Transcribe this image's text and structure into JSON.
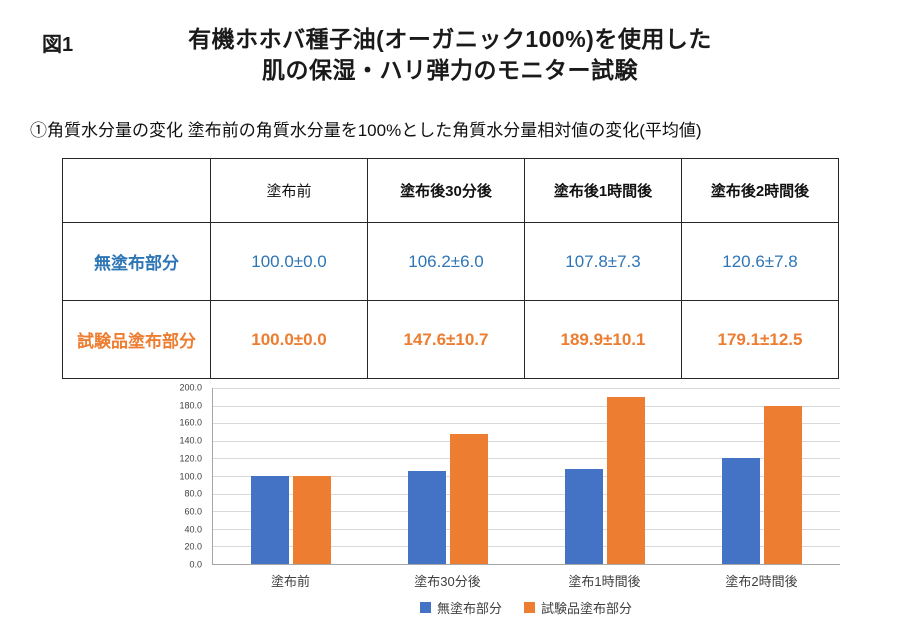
{
  "header": {
    "figure_label": "図1",
    "title_line1": "有機ホホバ種子油(オーガニック100%)を使用した",
    "title_line2": "肌の保湿・ハリ弾力のモニター試験",
    "subtitle": "①角質水分量の変化 塗布前の角質水分量を100%とした角質水分量相対値の変化(平均値)"
  },
  "table": {
    "headers": [
      "",
      "塗布前",
      "塗布後30分後",
      "塗布後1時間後",
      "塗布後2時間後"
    ],
    "rows": [
      {
        "label": "無塗布部分",
        "values": [
          "100.0±0.0",
          "106.2±6.0",
          "107.8±7.3",
          "120.6±7.8"
        ],
        "text_color": "#2E75B6"
      },
      {
        "label": "試験品塗布部分",
        "values": [
          "100.0±0.0",
          "147.6±10.7",
          "189.9±10.1",
          "179.1±12.5"
        ],
        "text_color": "#ED7D31"
      }
    ]
  },
  "chart_data": {
    "type": "bar",
    "categories": [
      "塗布前",
      "塗布30分後",
      "塗布1時間後",
      "塗布2時間後"
    ],
    "series": [
      {
        "name": "無塗布部分",
        "color": "#4472C4",
        "values": [
          100.0,
          106.2,
          107.8,
          120.6
        ]
      },
      {
        "name": "試験品塗布部分",
        "color": "#ED7D31",
        "values": [
          100.0,
          147.6,
          189.9,
          179.1
        ]
      }
    ],
    "title": "",
    "xlabel": "",
    "ylabel": "",
    "ylim": [
      0,
      200
    ],
    "ytick_step": 20,
    "ytick_labels": [
      "0.0",
      "20.0",
      "40.0",
      "60.0",
      "80.0",
      "100.0",
      "120.0",
      "140.0",
      "160.0",
      "180.0",
      "200.0"
    ],
    "grid": true,
    "legend_position": "bottom"
  }
}
